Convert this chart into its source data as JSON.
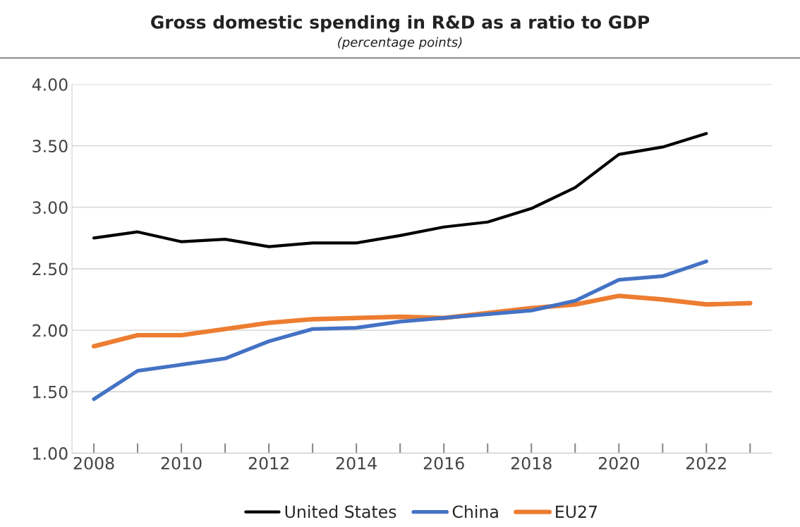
{
  "chart_data": {
    "type": "line",
    "title": "Gross domestic spending in R&D as a ratio to GDP",
    "subtitle": "(percentage points)",
    "x": [
      2008,
      2009,
      2010,
      2011,
      2012,
      2013,
      2014,
      2015,
      2016,
      2017,
      2018,
      2019,
      2020,
      2021,
      2022,
      2023
    ],
    "series": [
      {
        "name": "United States",
        "color": "#000000",
        "values": [
          2.75,
          2.8,
          2.72,
          2.74,
          2.68,
          2.71,
          2.71,
          2.77,
          2.84,
          2.88,
          2.99,
          3.16,
          3.43,
          3.49,
          3.6,
          null
        ]
      },
      {
        "name": "China",
        "color": "#4472c4",
        "values": [
          1.44,
          1.67,
          1.72,
          1.77,
          1.91,
          2.01,
          2.02,
          2.07,
          2.1,
          2.13,
          2.16,
          2.24,
          2.41,
          2.44,
          2.56,
          null
        ]
      },
      {
        "name": "EU27",
        "color": "#ed7d31",
        "values": [
          1.87,
          1.96,
          1.96,
          2.01,
          2.06,
          2.09,
          2.1,
          2.11,
          2.1,
          2.14,
          2.18,
          2.21,
          2.28,
          2.25,
          2.21,
          2.22
        ]
      }
    ],
    "xlim": [
      2007.5,
      2023.5
    ],
    "xticks": [
      2008,
      {
        "value": 2009,
        "label": null
      },
      2010,
      {
        "value": 2011,
        "label": null
      },
      2012,
      {
        "value": 2013,
        "label": null
      },
      2014,
      {
        "value": 2015,
        "label": null
      },
      2016,
      {
        "value": 2017,
        "label": null
      },
      2018,
      {
        "value": 2019,
        "label": null
      },
      2020,
      {
        "value": 2021,
        "label": null
      },
      2022,
      {
        "value": 2023,
        "label": null
      }
    ],
    "ylim": [
      1.0,
      4.0
    ],
    "yticks": [
      {
        "value": 1.0,
        "label": "1.00"
      },
      {
        "value": 1.5,
        "label": "1.50"
      },
      {
        "value": 2.0,
        "label": "2.00"
      },
      {
        "value": 2.5,
        "label": "2.50"
      },
      {
        "value": 3.0,
        "label": "3.00"
      },
      {
        "value": 3.5,
        "label": "3.50"
      },
      {
        "value": 4.0,
        "label": "4.00"
      }
    ],
    "grid": "y",
    "legend": "bottom",
    "marker": "none",
    "line_style": "solid"
  }
}
